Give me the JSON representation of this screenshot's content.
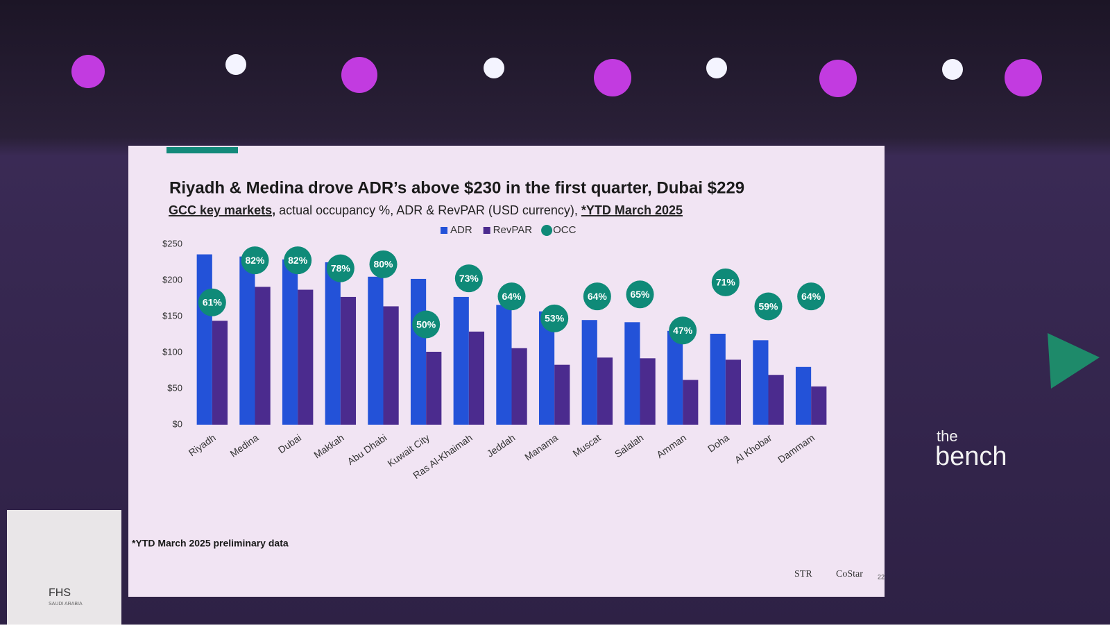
{
  "chart_data": {
    "type": "bar",
    "title": "Riyadh & Medina drove ADR’s above $230 in the first quarter, Dubai $229",
    "subtitle": [
      "GCC key markets,",
      " actual occupancy %, ADR & RevPAR (USD currency), ",
      "*YTD March 2025"
    ],
    "footnote": "*YTD March 2025 preliminary data",
    "categories": [
      "Riyadh",
      "Medina",
      "Dubai",
      "Makkah",
      "Abu Dhabi",
      "Kuwait City",
      "Ras Al-Khaimah",
      "Jeddah",
      "Manama",
      "Muscat",
      "Salalah",
      "Amman",
      "Doha",
      "Al Khobar",
      "Dammam"
    ],
    "series": [
      {
        "name": "ADR",
        "color": "#2352d8",
        "values": [
          236,
          233,
          229,
          225,
          205,
          202,
          177,
          166,
          157,
          145,
          142,
          130,
          126,
          117,
          80
        ]
      },
      {
        "name": "RevPAR",
        "color": "#4b2b8e",
        "values": [
          144,
          191,
          187,
          177,
          164,
          101,
          129,
          106,
          83,
          93,
          92,
          62,
          90,
          69,
          53
        ]
      },
      {
        "name": "OCC",
        "color": "#0f8a78",
        "axis": "y2",
        "values": [
          61,
          82,
          82,
          78,
          80,
          50,
          73,
          64,
          53,
          64,
          65,
          47,
          71,
          59,
          64
        ],
        "value_labels": [
          "61%",
          "82%",
          "82%",
          "78%",
          "80%",
          "50%",
          "73%",
          "64%",
          "53%",
          "64%",
          "65%",
          "47%",
          "71%",
          "59%",
          "64%"
        ]
      }
    ],
    "ylim": [
      0,
      250
    ],
    "yticks": [
      {
        "value": 0,
        "label": "$0"
      },
      {
        "value": 50,
        "label": "$50"
      },
      {
        "value": 100,
        "label": "$100"
      },
      {
        "value": 150,
        "label": "$150"
      },
      {
        "value": 200,
        "label": "$200"
      },
      {
        "value": 250,
        "label": "$250"
      }
    ],
    "y2lim": [
      0,
      90
    ],
    "grid": false,
    "legend": "top",
    "sources": [
      "STR",
      "CoStar"
    ],
    "page": "22"
  },
  "scene": {
    "sponsor": [
      "the",
      "bench"
    ],
    "podium": "FHS",
    "podium_sub": "SAUDI ARABIA"
  }
}
